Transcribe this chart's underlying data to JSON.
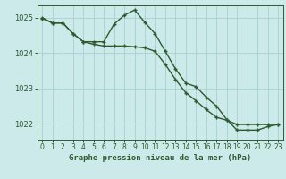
{
  "title": "Graphe pression niveau de la mer (hPa)",
  "bg_color": "#cceaea",
  "grid_color": "#aad4d4",
  "line_color": "#2d5a2d",
  "xlim": [
    -0.5,
    23.5
  ],
  "ylim": [
    1021.55,
    1025.35
  ],
  "yticks": [
    1022,
    1023,
    1024,
    1025
  ],
  "xticks": [
    0,
    1,
    2,
    3,
    4,
    5,
    6,
    7,
    8,
    9,
    10,
    11,
    12,
    13,
    14,
    15,
    16,
    17,
    18,
    19,
    20,
    21,
    22,
    23
  ],
  "series1_x": [
    0,
    1,
    2,
    3,
    4,
    5,
    6,
    7,
    8,
    9,
    10,
    11,
    12,
    13,
    14,
    15,
    16,
    17,
    18,
    19,
    20,
    21,
    22,
    23
  ],
  "series1_y": [
    1025.0,
    1024.85,
    1024.85,
    1024.55,
    1024.32,
    1024.32,
    1024.32,
    1024.82,
    1025.07,
    1025.22,
    1024.87,
    1024.55,
    1024.05,
    1023.55,
    1023.15,
    1023.05,
    1022.75,
    1022.5,
    1022.12,
    1021.82,
    1021.82,
    1021.82,
    1021.92,
    1021.98
  ],
  "series2_x": [
    0,
    1,
    2,
    3,
    4,
    5,
    6,
    7,
    8,
    9,
    10,
    11,
    12,
    13,
    14,
    15,
    16,
    17,
    18,
    19,
    20,
    21,
    22,
    23
  ],
  "series2_y": [
    1024.98,
    1024.85,
    1024.85,
    1024.55,
    1024.32,
    1024.25,
    1024.2,
    1024.2,
    1024.2,
    1024.18,
    1024.15,
    1024.05,
    1023.68,
    1023.25,
    1022.88,
    1022.65,
    1022.4,
    1022.18,
    1022.1,
    1021.98,
    1021.98,
    1021.98,
    1021.98,
    1021.98
  ],
  "title_fontsize": 6.5,
  "tick_fontsize": 5.5,
  "linewidth": 1.0,
  "markersize": 3.5
}
